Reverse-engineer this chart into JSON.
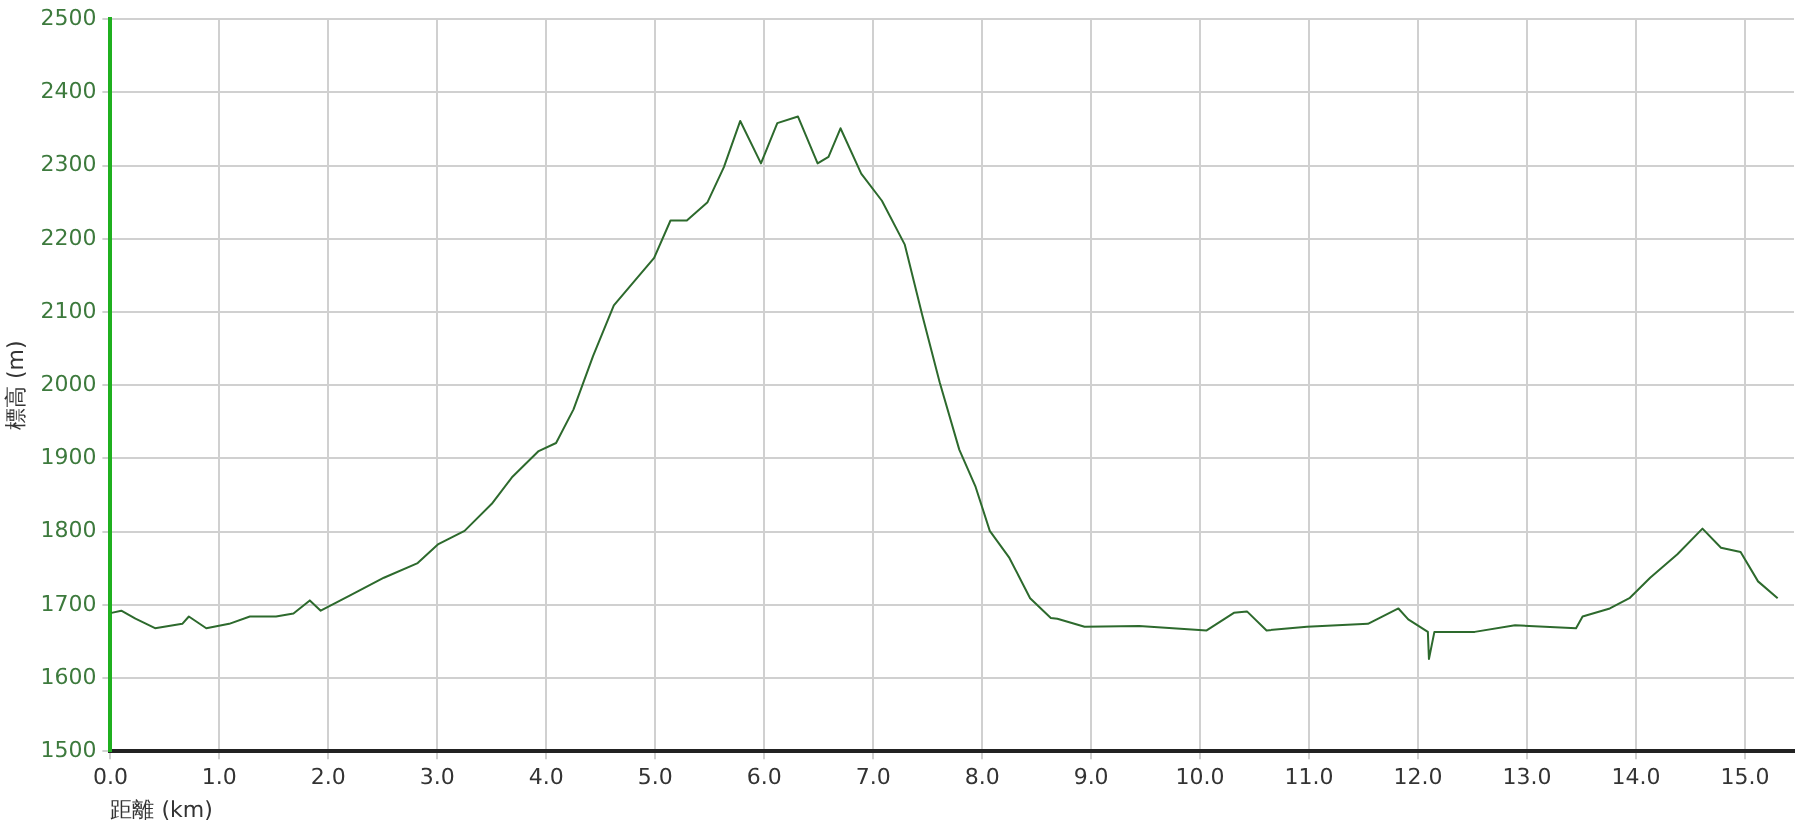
{
  "chart_data": {
    "type": "line",
    "xlabel": "距離 (km)",
    "ylabel": "標高 (m)",
    "x": [
      0.01,
      0.1,
      0.23,
      0.41,
      0.66,
      0.72,
      0.88,
      1.09,
      1.28,
      1.52,
      1.68,
      1.83,
      1.93,
      2.2,
      2.51,
      2.82,
      3.01,
      3.25,
      3.5,
      3.69,
      3.93,
      4.09,
      4.25,
      4.43,
      4.62,
      4.83,
      4.99,
      5.14,
      5.29,
      5.48,
      5.63,
      5.78,
      5.97,
      6.12,
      6.31,
      6.49,
      6.59,
      6.7,
      6.89,
      7.08,
      7.29,
      7.45,
      7.61,
      7.79,
      7.94,
      8.07,
      8.25,
      8.44,
      8.63,
      8.69,
      8.94,
      9.44,
      10.06,
      10.31,
      10.43,
      10.61,
      10.98,
      11.54,
      11.82,
      11.91,
      12.09,
      12.1,
      12.15,
      12.52,
      12.89,
      13.45,
      13.51,
      13.76,
      13.94,
      14.13,
      14.38,
      14.61,
      14.78,
      14.96,
      15.12,
      15.3
    ],
    "series": [
      {
        "color": "#2d6a2d",
        "values": [
          1689,
          1692,
          1681,
          1668,
          1674,
          1684,
          1668,
          1674,
          1684,
          1684,
          1688,
          1706,
          1692,
          1713,
          1737,
          1757,
          1783,
          1801,
          1838,
          1875,
          1910,
          1921,
          1967,
          2040,
          2109,
          2146,
          2174,
          2225,
          2225,
          2250,
          2298,
          2361,
          2303,
          2358,
          2367,
          2303,
          2312,
          2351,
          2289,
          2252,
          2192,
          2096,
          2004,
          1912,
          1861,
          1801,
          1764,
          1709,
          1682,
          1681,
          1670,
          1671,
          1665,
          1689,
          1691,
          1665,
          1670,
          1674,
          1695,
          1680,
          1663,
          1626,
          1663,
          1663,
          1672,
          1668,
          1684,
          1695,
          1709,
          1737,
          1769,
          1804,
          1778,
          1772,
          1732,
          1709
        ]
      }
    ],
    "xlim": [
      0,
      15.45
    ],
    "xticks": [
      {
        "value": 0,
        "label": "0.0"
      },
      {
        "value": 1,
        "label": "1.0"
      },
      {
        "value": 2,
        "label": "2.0"
      },
      {
        "value": 3,
        "label": "3.0"
      },
      {
        "value": 4,
        "label": "4.0"
      },
      {
        "value": 5,
        "label": "5.0"
      },
      {
        "value": 6,
        "label": "6.0"
      },
      {
        "value": 7,
        "label": "7.0"
      },
      {
        "value": 8,
        "label": "8.0"
      },
      {
        "value": 9,
        "label": "9.0"
      },
      {
        "value": 10,
        "label": "10.0"
      },
      {
        "value": 11,
        "label": "11.0"
      },
      {
        "value": 12,
        "label": "12.0"
      },
      {
        "value": 13,
        "label": "13.0"
      },
      {
        "value": 14,
        "label": "14.0"
      },
      {
        "value": 15,
        "label": "15.0"
      }
    ],
    "ylim": [
      1500,
      2500
    ],
    "yticks": [
      1500,
      1600,
      1700,
      1800,
      1900,
      2000,
      2100,
      2200,
      2300,
      2400,
      2500
    ],
    "grid": true,
    "marker": "none",
    "line_style": "solid"
  }
}
